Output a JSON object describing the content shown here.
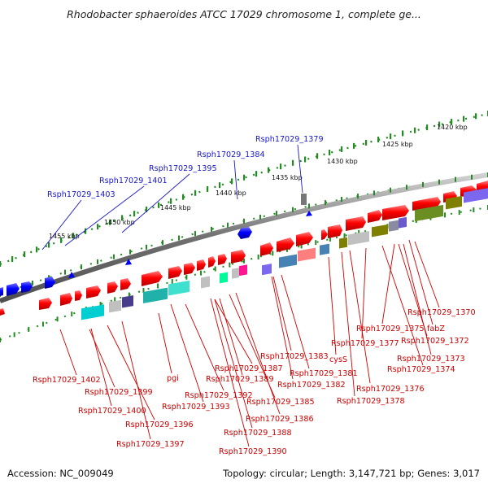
{
  "title": "Rhodobacter sphaeroides ATCC 17029 chromosome 1, complete ge...",
  "footer": {
    "accession": "Accession: NC_009049",
    "topology": "Topology: circular; Length: 3,147,721 bp; Genes: 3,017"
  },
  "scale_labels": [
    "1420 kbp",
    "1425 kbp",
    "1430 kbp",
    "1435 kbp",
    "1440 kbp",
    "1445 kbp",
    "1450 kbp",
    "1455 kbp"
  ],
  "blue_labels": [
    "Rsph17029_1379",
    "Rsph17029_1384",
    "Rsph17029_1395",
    "Rsph17029_1401",
    "Rsph17029_1403"
  ],
  "red_labels": [
    "Rsph17029_1370",
    "fabZ",
    "Rsph17029_1375",
    "Rsph17029_1372",
    "Rsph17029_1377",
    "Rsph17029_1373",
    "Rsph17029_1383",
    "cysS",
    "Rsph17029_1374",
    "Rsph17029_1381",
    "Rsph17029_1387",
    "Rsph17029_1376",
    "Rsph17029_1389",
    "Rsph17029_1382",
    "Rsph17029_1378",
    "Rsph17029_1402",
    "pgi",
    "Rsph17029_1399",
    "Rsph17029_1392",
    "Rsph17029_1385",
    "Rsph17029_1393",
    "Rsph17029_1400",
    "Rsph17029_1386",
    "Rsph17029_1396",
    "Rsph17029_1388",
    "Rsph17029_1397",
    "Rsph17029_1390"
  ],
  "colors": {
    "forward_gene": "#ff0000",
    "reverse_gene": "#0000ff",
    "backbone": "#808080",
    "scale_ticks": "#228b22",
    "blue_label": "#1818c8",
    "red_label": "#cc0000"
  }
}
